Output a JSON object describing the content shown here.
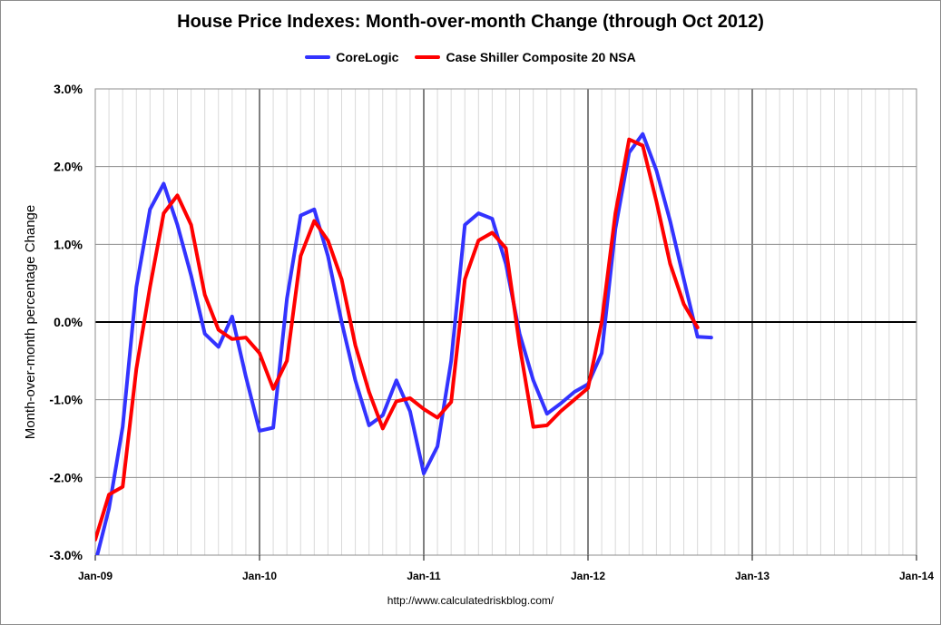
{
  "chart_data": {
    "type": "line",
    "title": "House Price Indexes: Month-over-month Change (through Oct 2012)",
    "ylabel": "Month-over-month percentage Change",
    "xlabel": "",
    "ylim": [
      -3.0,
      3.0
    ],
    "y_ticks": [
      -3.0,
      -2.0,
      -1.0,
      0.0,
      1.0,
      2.0,
      3.0
    ],
    "y_tick_labels": [
      "-3.0%",
      "-2.0%",
      "-1.0%",
      "0.0%",
      "1.0%",
      "2.0%",
      "3.0%"
    ],
    "x_range": [
      "2009-01",
      "2014-01"
    ],
    "x_tick_labels": [
      "Jan-09",
      "Jan-10",
      "Jan-11",
      "Jan-12",
      "Jan-13",
      "Jan-14"
    ],
    "grid": true,
    "legend_position": "top-center",
    "source": "http://www.calculatedriskblog.com/",
    "series": [
      {
        "name": "CoreLogic",
        "color": "#3333ff",
        "points": [
          [
            "2009-01",
            -3.1
          ],
          [
            "2009-02",
            -2.4
          ],
          [
            "2009-03",
            -1.35
          ],
          [
            "2009-04",
            0.45
          ],
          [
            "2009-05",
            1.45
          ],
          [
            "2009-06",
            1.78
          ],
          [
            "2009-07",
            1.25
          ],
          [
            "2009-08",
            0.6
          ],
          [
            "2009-09",
            -0.15
          ],
          [
            "2009-10",
            -0.32
          ],
          [
            "2009-11",
            0.07
          ],
          [
            "2009-12",
            -0.7
          ],
          [
            "2010-01",
            -1.4
          ],
          [
            "2010-02",
            -1.36
          ],
          [
            "2010-03",
            0.3
          ],
          [
            "2010-04",
            1.37
          ],
          [
            "2010-05",
            1.45
          ],
          [
            "2010-06",
            0.85
          ],
          [
            "2010-07",
            0.0
          ],
          [
            "2010-08",
            -0.75
          ],
          [
            "2010-09",
            -1.33
          ],
          [
            "2010-10",
            -1.2
          ],
          [
            "2010-11",
            -0.75
          ],
          [
            "2010-12",
            -1.15
          ],
          [
            "2011-01",
            -1.95
          ],
          [
            "2011-02",
            -1.6
          ],
          [
            "2011-03",
            -0.5
          ],
          [
            "2011-04",
            1.25
          ],
          [
            "2011-05",
            1.4
          ],
          [
            "2011-06",
            1.33
          ],
          [
            "2011-07",
            0.75
          ],
          [
            "2011-08",
            -0.15
          ],
          [
            "2011-09",
            -0.75
          ],
          [
            "2011-10",
            -1.18
          ],
          [
            "2011-11",
            -1.05
          ],
          [
            "2011-12",
            -0.9
          ],
          [
            "2012-01",
            -0.8
          ],
          [
            "2012-02",
            -0.4
          ],
          [
            "2012-03",
            1.2
          ],
          [
            "2012-04",
            2.18
          ],
          [
            "2012-05",
            2.42
          ],
          [
            "2012-06",
            1.95
          ],
          [
            "2012-07",
            1.3
          ],
          [
            "2012-08",
            0.55
          ],
          [
            "2012-09",
            -0.19
          ],
          [
            "2012-10",
            -0.2
          ]
        ]
      },
      {
        "name": "Case Shiller Composite 20 NSA",
        "color": "#ff0000",
        "points": [
          [
            "2009-01",
            -2.8
          ],
          [
            "2009-02",
            -2.22
          ],
          [
            "2009-03",
            -2.12
          ],
          [
            "2009-04",
            -0.6
          ],
          [
            "2009-05",
            0.45
          ],
          [
            "2009-06",
            1.4
          ],
          [
            "2009-07",
            1.63
          ],
          [
            "2009-08",
            1.25
          ],
          [
            "2009-09",
            0.35
          ],
          [
            "2009-10",
            -0.1
          ],
          [
            "2009-11",
            -0.22
          ],
          [
            "2009-12",
            -0.2
          ],
          [
            "2010-01",
            -0.4
          ],
          [
            "2010-02",
            -0.86
          ],
          [
            "2010-03",
            -0.5
          ],
          [
            "2010-04",
            0.85
          ],
          [
            "2010-05",
            1.3
          ],
          [
            "2010-06",
            1.05
          ],
          [
            "2010-07",
            0.55
          ],
          [
            "2010-08",
            -0.3
          ],
          [
            "2010-09",
            -0.9
          ],
          [
            "2010-10",
            -1.37
          ],
          [
            "2010-11",
            -1.02
          ],
          [
            "2010-12",
            -0.98
          ],
          [
            "2011-01",
            -1.12
          ],
          [
            "2011-02",
            -1.23
          ],
          [
            "2011-03",
            -1.03
          ],
          [
            "2011-04",
            0.55
          ],
          [
            "2011-05",
            1.05
          ],
          [
            "2011-06",
            1.15
          ],
          [
            "2011-07",
            0.95
          ],
          [
            "2011-08",
            -0.3
          ],
          [
            "2011-09",
            -1.35
          ],
          [
            "2011-10",
            -1.33
          ],
          [
            "2011-11",
            -1.15
          ],
          [
            "2011-12",
            -1.0
          ],
          [
            "2012-01",
            -0.85
          ],
          [
            "2012-02",
            0.0
          ],
          [
            "2012-03",
            1.4
          ],
          [
            "2012-04",
            2.35
          ],
          [
            "2012-05",
            2.27
          ],
          [
            "2012-06",
            1.55
          ],
          [
            "2012-07",
            0.75
          ],
          [
            "2012-08",
            0.23
          ],
          [
            "2012-09",
            -0.07
          ]
        ]
      }
    ]
  }
}
